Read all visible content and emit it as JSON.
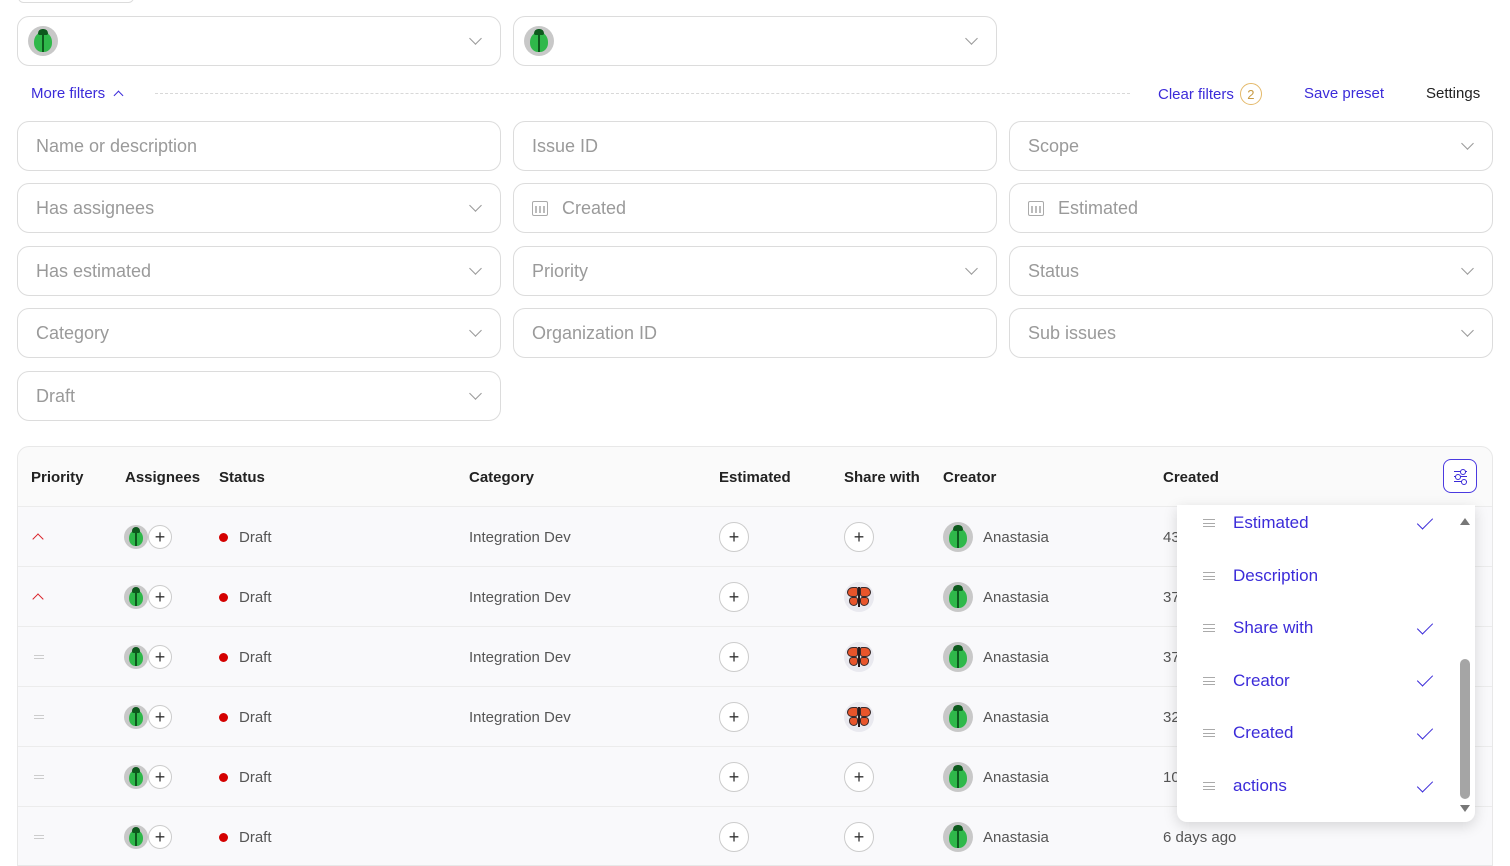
{
  "filters": {
    "more_filters_label": "More filters",
    "clear_filters_label": "Clear filters",
    "clear_filters_count": "2",
    "save_preset_label": "Save preset",
    "settings_label": "Settings",
    "name_placeholder": "Name or description",
    "issue_id_placeholder": "Issue ID",
    "scope_placeholder": "Scope",
    "has_assignees_placeholder": "Has assignees",
    "created_placeholder": "Created",
    "estimated_placeholder": "Estimated",
    "has_estimated_placeholder": "Has estimated",
    "priority_placeholder": "Priority",
    "status_placeholder": "Status",
    "category_placeholder": "Category",
    "organization_id_placeholder": "Organization ID",
    "sub_issues_placeholder": "Sub issues",
    "draft_placeholder": "Draft"
  },
  "table": {
    "headers": {
      "priority": "Priority",
      "assignees": "Assignees",
      "status": "Status",
      "category": "Category",
      "estimated": "Estimated",
      "share_with": "Share with",
      "creator": "Creator",
      "created": "Created"
    },
    "rows": [
      {
        "priority": "high",
        "status": "Draft",
        "category": "Integration Dev",
        "share": "plus",
        "creator": "Anastasia",
        "created": "43"
      },
      {
        "priority": "high",
        "status": "Draft",
        "category": "Integration Dev",
        "share": "butterfly",
        "creator": "Anastasia",
        "created": "37"
      },
      {
        "priority": "medium",
        "status": "Draft",
        "category": "Integration Dev",
        "share": "butterfly",
        "creator": "Anastasia",
        "created": "37"
      },
      {
        "priority": "medium",
        "status": "Draft",
        "category": "Integration Dev",
        "share": "butterfly",
        "creator": "Anastasia",
        "created": "32"
      },
      {
        "priority": "medium",
        "status": "Draft",
        "category": "",
        "share": "plus",
        "creator": "Anastasia",
        "created": "10"
      },
      {
        "priority": "medium",
        "status": "Draft",
        "category": "",
        "share": "plus",
        "creator": "Anastasia",
        "created": "6 days ago"
      }
    ],
    "status_color": "#d40000"
  },
  "columns_popup": {
    "items": [
      {
        "label": "Estimated",
        "checked": true
      },
      {
        "label": "Description",
        "checked": false
      },
      {
        "label": "Share with",
        "checked": true
      },
      {
        "label": "Creator",
        "checked": true
      },
      {
        "label": "Created",
        "checked": true
      },
      {
        "label": "actions",
        "checked": true
      }
    ]
  },
  "accent_color": "#3b2bd9",
  "icons": {
    "user": "bug-avatar-icon",
    "shared": "butterfly-avatar-icon",
    "add": "plus-icon",
    "date": "calendar-icon",
    "dropdown": "chevron-down-icon",
    "drag": "drag-handle-icon",
    "check": "check-icon",
    "columns": "sliders-icon"
  }
}
